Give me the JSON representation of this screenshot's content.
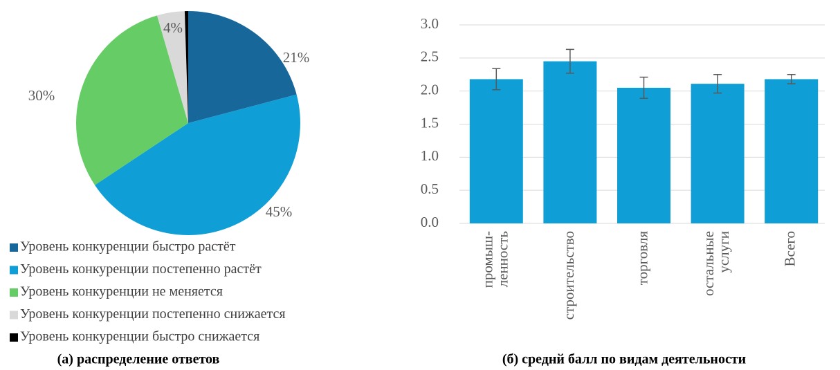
{
  "chart_data": [
    {
      "type": "pie",
      "categories": [
        "Уровень конкуренции быстро растёт",
        "Уровень конкуренции постепенно растёт",
        "Уровень конкуренции не меняется",
        "Уровень конкуренции постепенно снижается",
        "Уровень конкуренции быстро снижается"
      ],
      "values": [
        21,
        45,
        30,
        4,
        0.5
      ],
      "value_labels": [
        "21%",
        "45%",
        "30%",
        "4%",
        null
      ],
      "colors": [
        "#17679a",
        "#0f9ed5",
        "#66cc66",
        "#d9d9d9",
        "#000000"
      ],
      "caption": "(а) распределение ответов"
    },
    {
      "type": "bar",
      "categories": [
        "промыш-\nленность",
        "строительство",
        "торговля",
        "остальные\nуслуги",
        "Всего"
      ],
      "values": [
        2.18,
        2.45,
        2.05,
        2.11,
        2.18
      ],
      "errors": [
        0.16,
        0.18,
        0.16,
        0.14,
        0.07
      ],
      "color": "#0f9ed5",
      "ylim": [
        0,
        3
      ],
      "yticks": [
        {
          "value": 0,
          "label": "0.0"
        },
        {
          "value": 0.5,
          "label": "0.5"
        },
        {
          "value": 1,
          "label": "1.0"
        },
        {
          "value": 1.5,
          "label": "1.5"
        },
        {
          "value": 2,
          "label": "2.0"
        },
        {
          "value": 2.5,
          "label": "2.5"
        },
        {
          "value": 3,
          "label": "3.0"
        }
      ],
      "grid": true,
      "caption": "(б) среднй балл по видам деятельности"
    }
  ]
}
